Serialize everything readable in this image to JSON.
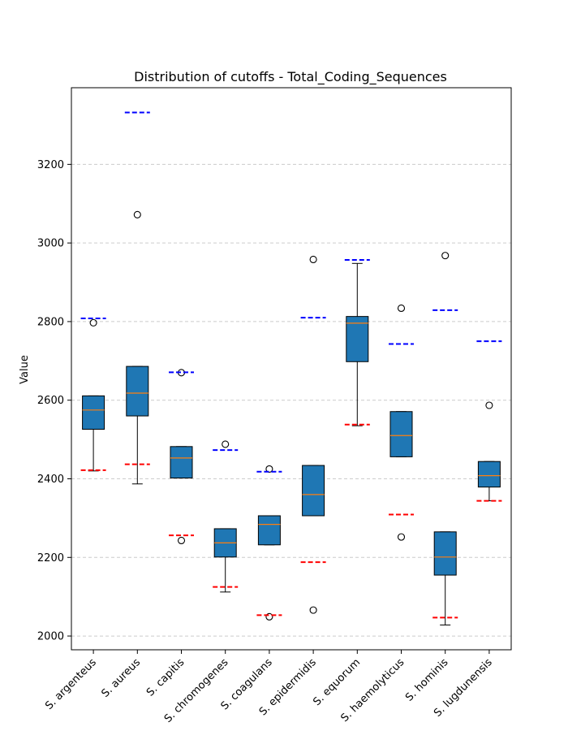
{
  "chart_data": {
    "type": "box",
    "title": "Distribution of cutoffs - Total_Coding_Sequences",
    "xlabel": "",
    "ylabel": "Value",
    "ylim": [
      1965,
      3395
    ],
    "yticks": [
      2000,
      2200,
      2400,
      2600,
      2800,
      3000,
      3200
    ],
    "grid": "y-dashed",
    "colors": {
      "box_fill": "#1f77b4",
      "median": "#ff7f0e",
      "upper_cutoff": "#0000ff",
      "lower_cutoff": "#ff0000",
      "grid": "#cccccc"
    },
    "categories": [
      "S. argenteus",
      "S. aureus",
      "S. capitis",
      "S. chromogenes",
      "S. coagulans",
      "S. epidermidis",
      "S. equorum",
      "S. haemolyticus",
      "S. hominis",
      "S. lugdunensis"
    ],
    "boxes": [
      {
        "whisker_low": 2420,
        "q1": 2526,
        "median": 2575,
        "q3": 2611,
        "whisker_high": 2611,
        "outliers": [
          2797
        ]
      },
      {
        "whisker_low": 2387,
        "q1": 2560,
        "median": 2618,
        "q3": 2686,
        "whisker_high": 2686,
        "outliers": [
          3072
        ]
      },
      {
        "whisker_low": 2402,
        "q1": 2402,
        "median": 2453,
        "q3": 2482,
        "whisker_high": 2482,
        "outliers": [
          2670,
          2243
        ]
      },
      {
        "whisker_low": 2112,
        "q1": 2201,
        "median": 2237,
        "q3": 2273,
        "whisker_high": 2273,
        "outliers": [
          2488
        ]
      },
      {
        "whisker_low": 2232,
        "q1": 2232,
        "median": 2284,
        "q3": 2306,
        "whisker_high": 2306,
        "outliers": [
          2425,
          2049
        ]
      },
      {
        "whisker_low": 2306,
        "q1": 2306,
        "median": 2360,
        "q3": 2434,
        "whisker_high": 2434,
        "outliers": [
          2958,
          2066
        ]
      },
      {
        "whisker_low": 2535,
        "q1": 2698,
        "median": 2796,
        "q3": 2813,
        "whisker_high": 2948,
        "outliers": []
      },
      {
        "whisker_low": 2456,
        "q1": 2456,
        "median": 2510,
        "q3": 2571,
        "whisker_high": 2571,
        "outliers": [
          2834,
          2252
        ]
      },
      {
        "whisker_low": 2028,
        "q1": 2155,
        "median": 2201,
        "q3": 2265,
        "whisker_high": 2265,
        "outliers": [
          2968
        ]
      },
      {
        "whisker_low": 2344,
        "q1": 2379,
        "median": 2408,
        "q3": 2444,
        "whisker_high": 2444,
        "outliers": [
          2587
        ]
      }
    ],
    "cutoffs": [
      {
        "upper": 2808,
        "lower": 2422
      },
      {
        "upper": 3332,
        "lower": 2437
      },
      {
        "upper": 2671,
        "lower": 2256
      },
      {
        "upper": 2473,
        "lower": 2125
      },
      {
        "upper": 2418,
        "lower": 2053
      },
      {
        "upper": 2810,
        "lower": 2188
      },
      {
        "upper": 2957,
        "lower": 2538
      },
      {
        "upper": 2743,
        "lower": 2309
      },
      {
        "upper": 2829,
        "lower": 2047
      },
      {
        "upper": 2750,
        "lower": 2344
      }
    ]
  }
}
